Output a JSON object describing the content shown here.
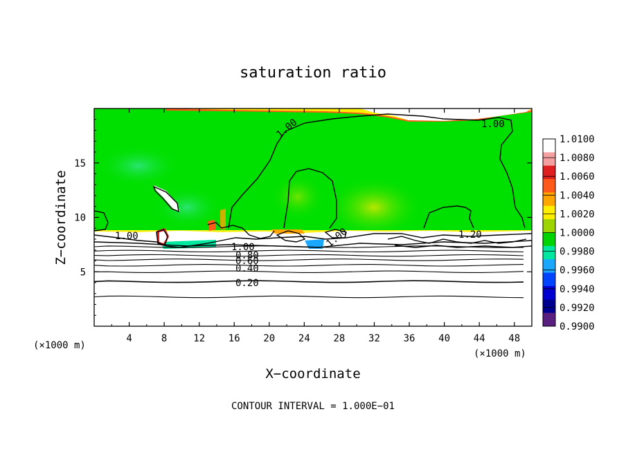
{
  "chart_data": {
    "type": "heatmap",
    "title": "saturation ratio",
    "xlabel": "X−coordinate",
    "ylabel": "Z−coordinate",
    "x_unit_left": "(×1000 m)",
    "x_unit_right": "(×1000 m)",
    "xlim": [
      0,
      50
    ],
    "ylim": [
      0,
      20
    ],
    "x_ticks": [
      "4",
      "8",
      "12",
      "16",
      "20",
      "24",
      "28",
      "32",
      "36",
      "40",
      "44",
      "48"
    ],
    "y_ticks": [
      "5",
      "10",
      "15"
    ],
    "contour_interval_text": "CONTOUR INTERVAL = 1.000E−01",
    "colorbar": {
      "labels": [
        "1.0100",
        "1.0080",
        "1.0060",
        "1.0040",
        "1.0020",
        "1.0000",
        "0.9980",
        "0.9960",
        "0.9940",
        "0.9920",
        "0.9900"
      ],
      "colors": [
        "#ffffff",
        "#f4a0a0",
        "#e02020",
        "#ff5a1a",
        "#ffa500",
        "#ffee00",
        "#9cd400",
        "#00d400",
        "#00e8a0",
        "#1aa8ff",
        "#0044ff",
        "#0000d0",
        "#000090",
        "#5a2080"
      ]
    },
    "contour_labels": [
      "1.00",
      "1.00",
      "1.00",
      "1.00",
      "1.20",
      "1.00",
      "0.80",
      "0.60",
      "0.40",
      "0.20"
    ],
    "contour_levels_z": [
      2.7,
      4.1,
      5.0,
      5.6,
      6.1,
      6.5,
      6.9,
      7.3
    ],
    "grid": false
  }
}
